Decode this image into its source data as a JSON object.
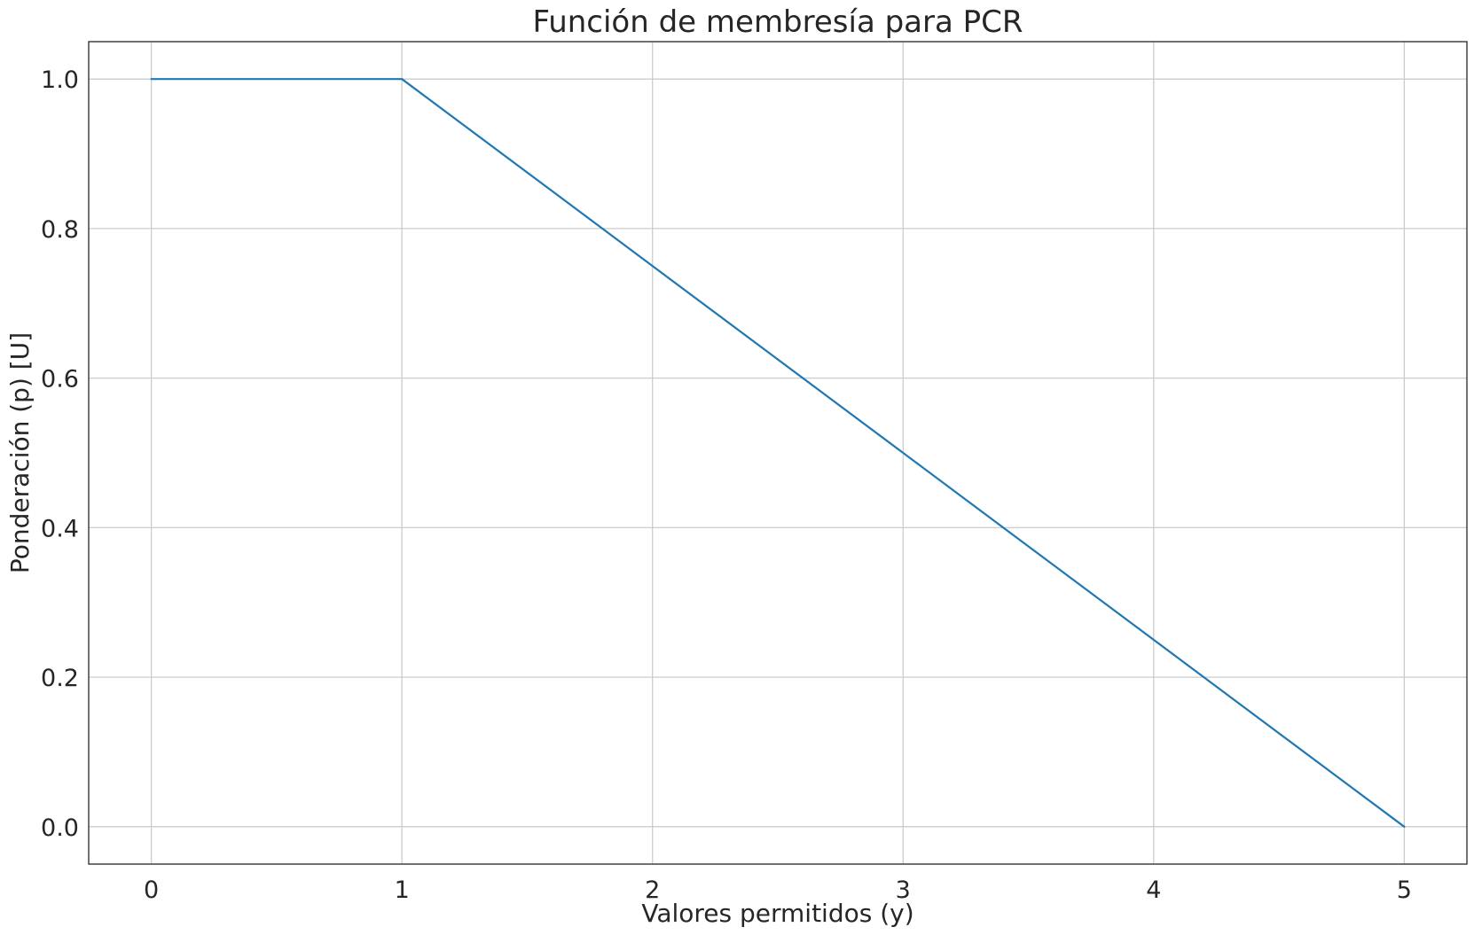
{
  "chart_data": {
    "type": "line",
    "title": "Función de membresía para PCR",
    "xlabel": "Valores permitidos (y)",
    "ylabel": "Ponderación (p) [U]",
    "xlim": [
      -0.25,
      5.25
    ],
    "ylim": [
      -0.05,
      1.05
    ],
    "xticks": [
      0,
      1,
      2,
      3,
      4,
      5
    ],
    "xtick_labels": [
      "0",
      "1",
      "2",
      "3",
      "4",
      "5"
    ],
    "yticks": [
      0.0,
      0.2,
      0.4,
      0.6,
      0.8,
      1.0
    ],
    "ytick_labels": [
      "0.0",
      "0.2",
      "0.4",
      "0.6",
      "0.8",
      "1.0"
    ],
    "grid": true,
    "series": [
      {
        "x": [
          0,
          1,
          5
        ],
        "y": [
          1.0,
          1.0,
          0.0
        ],
        "color": "#1f77b4"
      }
    ]
  }
}
